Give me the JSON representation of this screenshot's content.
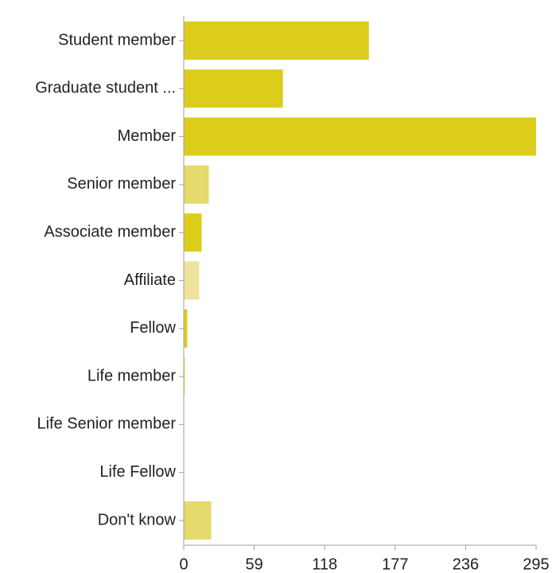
{
  "chart_data": {
    "type": "bar",
    "orientation": "horizontal",
    "categories": [
      "Student member",
      "Graduate student ...",
      "Member",
      "Senior member",
      "Associate member",
      "Affiliate",
      "Fellow",
      "Life member",
      "Life Senior member",
      "Life Fellow",
      "Don't know"
    ],
    "values": [
      155,
      83,
      295,
      21,
      15,
      13,
      3,
      1,
      0,
      0,
      23
    ],
    "bar_colors": [
      "#dccd1c",
      "#dccd1c",
      "#dccd1c",
      "#e5da6c",
      "#dccd1c",
      "#eee29c",
      "#dccd1c",
      "#e5da6c",
      "#dccd1c",
      "#dccd1c",
      "#e5da6c"
    ],
    "xticks": [
      0,
      59,
      118,
      177,
      236,
      295
    ],
    "xlim": [
      0,
      295
    ],
    "title": "",
    "xlabel": "",
    "ylabel": "",
    "grid": false,
    "legend": "none",
    "colors": {
      "axis": "#a0a0a0",
      "text": "#222222"
    }
  }
}
